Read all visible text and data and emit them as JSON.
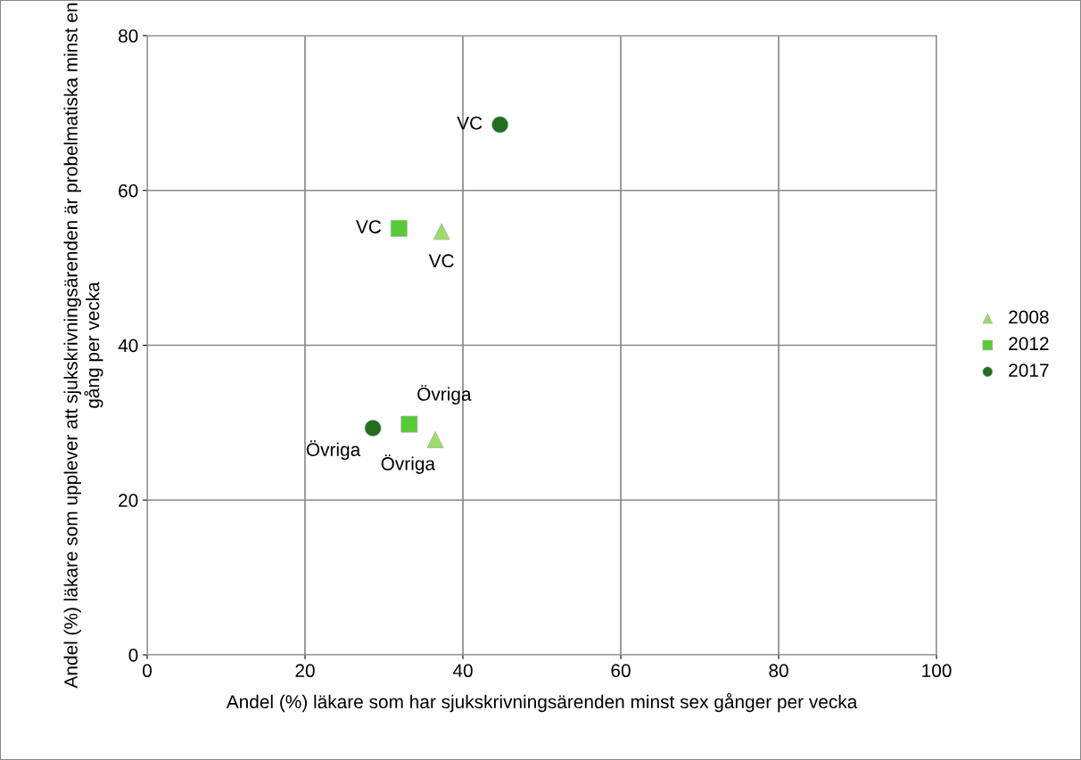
{
  "chart_data": {
    "type": "scatter",
    "xlabel": "Andel (%) läkare som har sjukskrivningsärenden minst sex gånger per vecka",
    "ylabel": "Andel (%) läkare som upplever att sjukskrivningsärenden är probelmatiska minst en gång per vecka",
    "xlim": [
      0,
      100
    ],
    "xticks": [
      0,
      20,
      40,
      60,
      80,
      100
    ],
    "ylim": [
      0,
      80
    ],
    "yticks": [
      0,
      20,
      40,
      60,
      80
    ],
    "grid": true,
    "legend": "right",
    "series": [
      {
        "name": "2008",
        "color": "#99dd66",
        "marker": "triangle",
        "x": [
          37.3,
          36.5
        ],
        "values": [
          54.7,
          27.8
        ]
      },
      {
        "name": "2012",
        "color": "#55cc33",
        "marker": "square",
        "x": [
          31.9,
          33.2
        ],
        "values": [
          55.1,
          29.8
        ]
      },
      {
        "name": "2017",
        "color": "#1f6f1f",
        "marker": "circle",
        "x": [
          44.7,
          28.6
        ],
        "values": [
          68.5,
          29.3
        ]
      }
    ],
    "annotations": [
      {
        "text": "VC",
        "x": 44.7,
        "y": 68.5
      },
      {
        "text": "VC",
        "x": 31.9,
        "y": 55.1
      },
      {
        "text": "VC",
        "x": 37.3,
        "y": 54.7
      },
      {
        "text": "Övriga",
        "x": 28.6,
        "y": 29.3
      },
      {
        "text": "Övriga",
        "x": 33.2,
        "y": 29.8
      },
      {
        "text": "Övriga",
        "x": 36.5,
        "y": 27.8
      }
    ]
  }
}
